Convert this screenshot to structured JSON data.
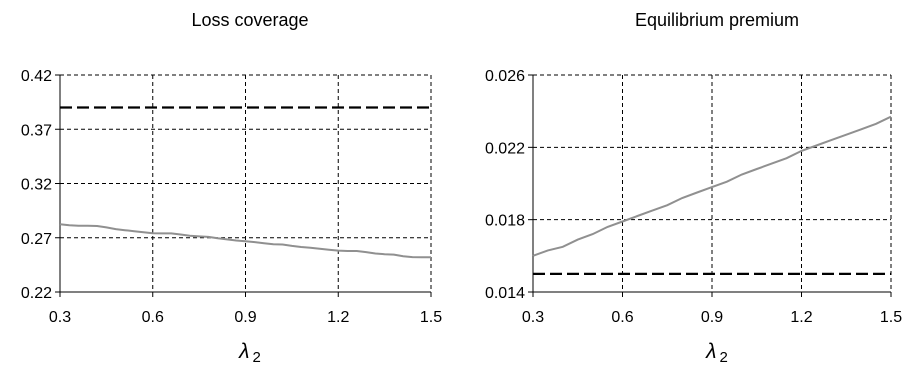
{
  "chart_data": [
    {
      "type": "line",
      "title": "Loss coverage",
      "xlabel": "λ",
      "xlabel_sub": "2",
      "ylabel": "",
      "xlim": [
        0.3,
        1.5
      ],
      "ylim": [
        0.22,
        0.42
      ],
      "xticks": [
        "0.3",
        "0.6",
        "0.9",
        "1.2",
        "1.5"
      ],
      "yticks": [
        "0.22",
        "0.27",
        "0.32",
        "0.37",
        "0.42"
      ],
      "grid": true,
      "series": [
        {
          "style": "solid",
          "color": "#909090",
          "x": [
            0.3,
            0.33,
            0.36,
            0.39,
            0.42,
            0.45,
            0.48,
            0.51,
            0.54,
            0.57,
            0.6,
            0.63,
            0.66,
            0.69,
            0.72,
            0.75,
            0.78,
            0.81,
            0.84,
            0.87,
            0.9,
            0.93,
            0.96,
            0.99,
            1.02,
            1.05,
            1.08,
            1.11,
            1.14,
            1.17,
            1.2,
            1.23,
            1.26,
            1.29,
            1.32,
            1.35,
            1.38,
            1.41,
            1.44,
            1.47,
            1.5
          ],
          "y": [
            0.2825,
            0.2815,
            0.281,
            0.281,
            0.2808,
            0.2795,
            0.278,
            0.277,
            0.276,
            0.275,
            0.2742,
            0.274,
            0.274,
            0.273,
            0.2718,
            0.2712,
            0.2708,
            0.2695,
            0.2685,
            0.2675,
            0.2668,
            0.266,
            0.265,
            0.264,
            0.2638,
            0.2625,
            0.2615,
            0.2608,
            0.2598,
            0.259,
            0.2582,
            0.2578,
            0.2578,
            0.2568,
            0.2555,
            0.2548,
            0.2545,
            0.253,
            0.2522,
            0.252,
            0.252
          ]
        },
        {
          "style": "dashed",
          "color": "#000000",
          "x": [
            0.3,
            1.5
          ],
          "y": [
            0.39,
            0.39
          ]
        }
      ]
    },
    {
      "type": "line",
      "title": "Equilibrium premium",
      "xlabel": "λ",
      "xlabel_sub": "2",
      "ylabel": "",
      "xlim": [
        0.3,
        1.5
      ],
      "ylim": [
        0.014,
        0.026
      ],
      "xticks": [
        "0.3",
        "0.6",
        "0.9",
        "1.2",
        "1.5"
      ],
      "yticks": [
        "0.014",
        "0.018",
        "0.022",
        "0.026"
      ],
      "grid": true,
      "series": [
        {
          "style": "solid",
          "color": "#909090",
          "x": [
            0.3,
            0.35,
            0.4,
            0.45,
            0.5,
            0.55,
            0.6,
            0.65,
            0.7,
            0.75,
            0.8,
            0.85,
            0.9,
            0.95,
            1.0,
            1.05,
            1.1,
            1.15,
            1.2,
            1.25,
            1.3,
            1.35,
            1.4,
            1.45,
            1.5
          ],
          "y": [
            0.016,
            0.0163,
            0.0165,
            0.0169,
            0.0172,
            0.0176,
            0.0179,
            0.0182,
            0.0185,
            0.0188,
            0.0192,
            0.0195,
            0.0198,
            0.0201,
            0.0205,
            0.0208,
            0.0211,
            0.0214,
            0.0218,
            0.0221,
            0.0224,
            0.0227,
            0.023,
            0.0233,
            0.0237
          ]
        },
        {
          "style": "dashed",
          "color": "#000000",
          "x": [
            0.3,
            1.5
          ],
          "y": [
            0.015,
            0.015
          ]
        }
      ]
    }
  ]
}
